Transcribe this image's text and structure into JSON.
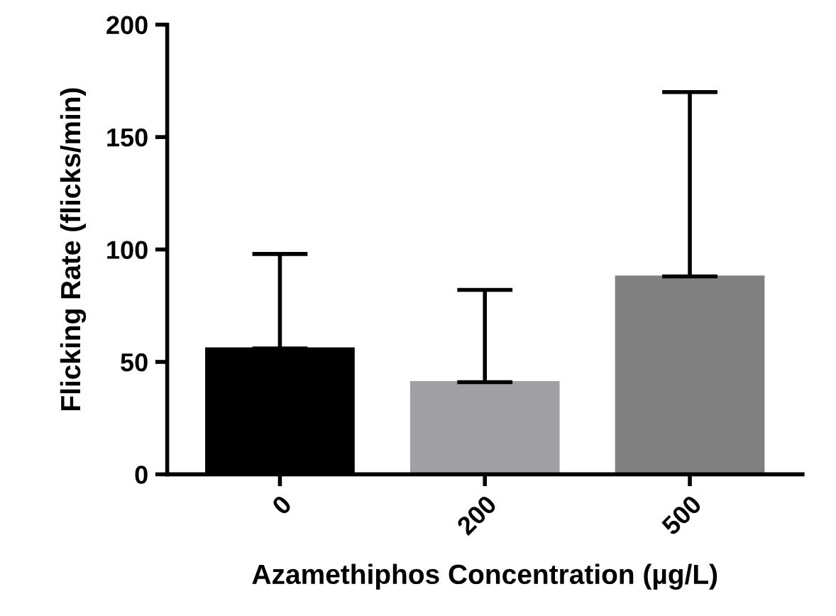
{
  "chart_data": {
    "type": "bar",
    "xlabel": "Azamethiphos Concentration (µg/L)",
    "ylabel": "Flicking Rate (flicks/min)",
    "categories": [
      "0",
      "200",
      "500"
    ],
    "values": [
      56,
      41,
      88
    ],
    "colors": [
      "#000000",
      "#a0a0a4",
      "#808080"
    ],
    "errors": [
      [
        56,
        98
      ],
      [
        41,
        82
      ],
      [
        88,
        170
      ]
    ],
    "ylim": [
      0,
      200
    ],
    "yticks": [
      0,
      50,
      100,
      150,
      200
    ],
    "grid": false,
    "legend": false
  }
}
